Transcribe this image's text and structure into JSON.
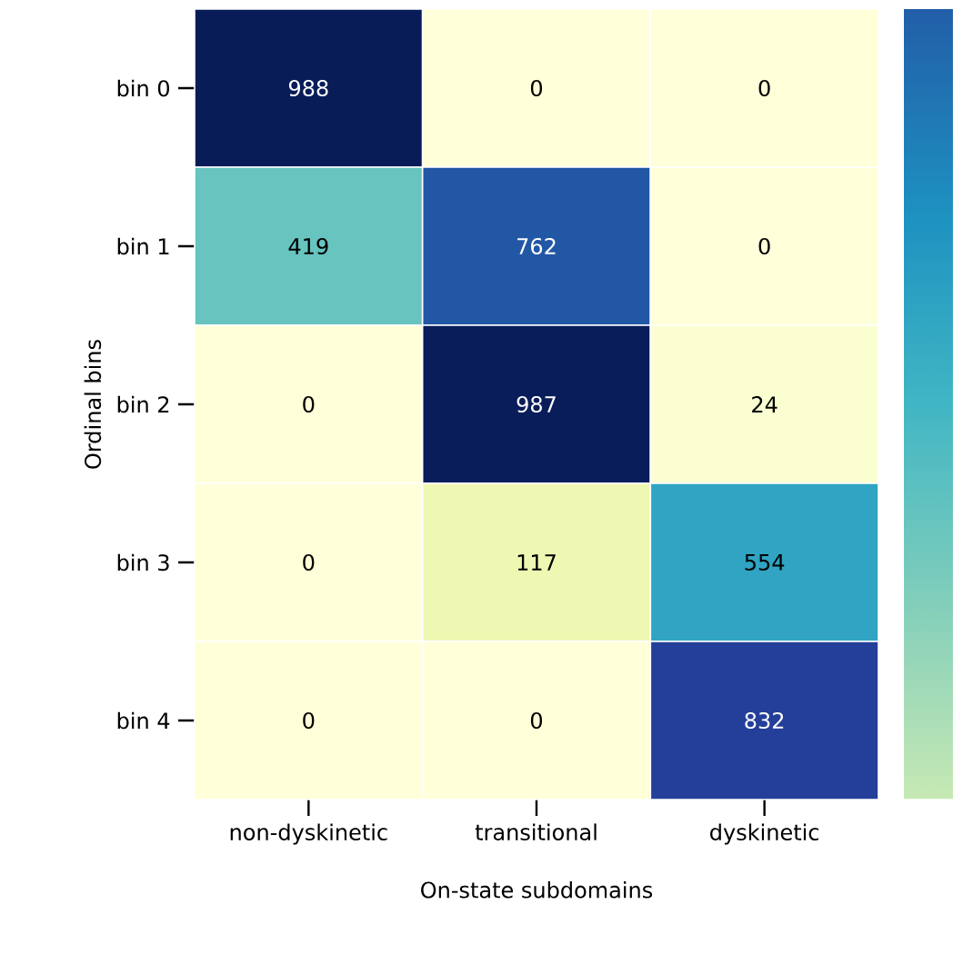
{
  "chart_data": {
    "type": "heatmap",
    "xlabel": "On-state subdomains",
    "ylabel": "Ordinal bins",
    "categories": [
      "non-dyskinetic",
      "transitional",
      "dyskinetic"
    ],
    "y_categories": [
      "bin 0",
      "bin 1",
      "bin 2",
      "bin 3",
      "bin 4"
    ],
    "cells": [
      [
        988,
        0,
        0
      ],
      [
        419,
        762,
        0
      ],
      [
        0,
        987,
        24
      ],
      [
        0,
        117,
        554
      ],
      [
        0,
        0,
        832
      ]
    ],
    "data_labels": true
  }
}
